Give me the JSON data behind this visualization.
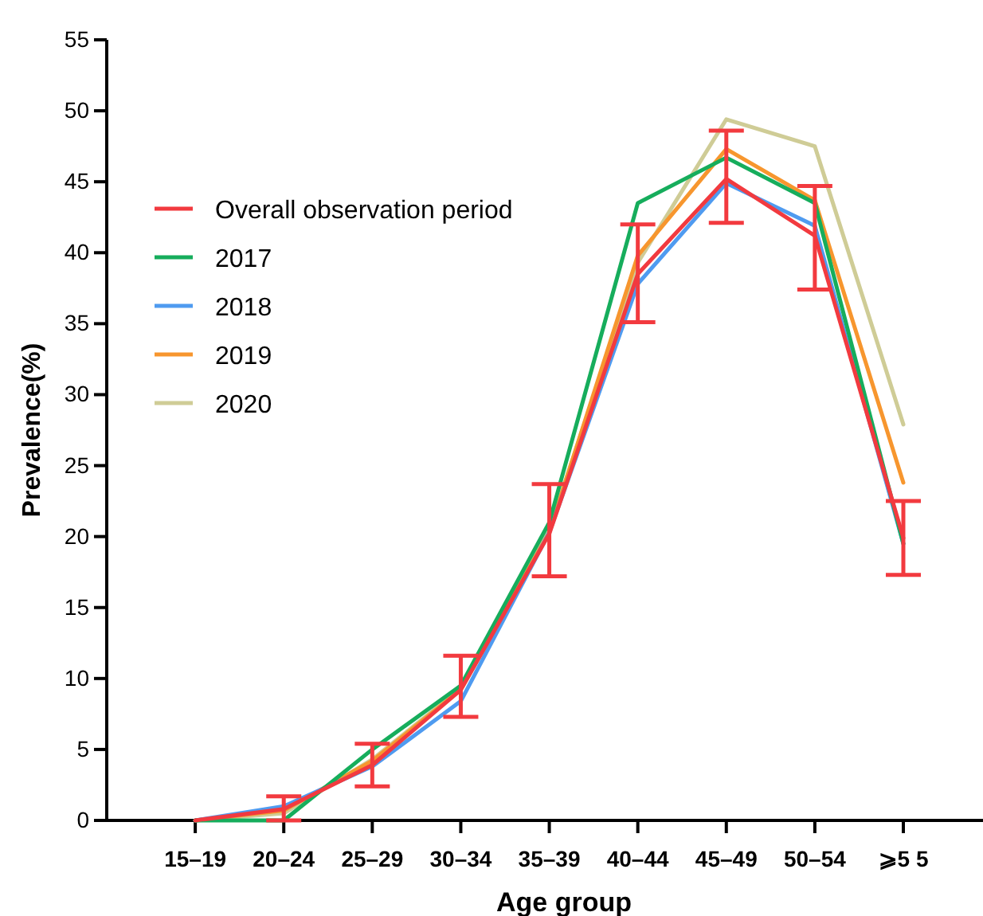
{
  "chart_data": {
    "type": "line",
    "xlabel": "Age group",
    "ylabel": "Prevalence(%)",
    "categories": [
      "15–19",
      "20–24",
      "25–29",
      "30–34",
      "35–39",
      "40–44",
      "45–49",
      "50–54",
      "⩾5 5"
    ],
    "ylim": [
      0,
      55
    ],
    "yticks": [
      0,
      5,
      10,
      15,
      20,
      25,
      30,
      35,
      40,
      45,
      50,
      55
    ],
    "grid": false,
    "legend": "top left",
    "marker": "none",
    "line_style": "solid",
    "series": [
      {
        "name": "Overall observation period",
        "color": "#f23a3f",
        "values": [
          0,
          0.8,
          3.9,
          9.2,
          20.2,
          38.5,
          45.2,
          41.2,
          19.9
        ],
        "errors": [
          null,
          [
            0,
            1.7
          ],
          [
            2.4,
            5.4
          ],
          [
            7.3,
            11.6
          ],
          [
            17.2,
            23.7
          ],
          [
            35.1,
            42.0
          ],
          [
            42.1,
            48.6
          ],
          [
            37.4,
            44.7
          ],
          [
            17.3,
            22.5
          ]
        ]
      },
      {
        "name": "2017",
        "color": "#16ad5c",
        "values": [
          0,
          0,
          5.0,
          9.5,
          21.0,
          43.5,
          46.7,
          43.5,
          19.5
        ]
      },
      {
        "name": "2018",
        "color": "#4f9bf0",
        "values": [
          0,
          1.0,
          3.8,
          8.4,
          20.3,
          37.8,
          44.9,
          41.9,
          19.5
        ]
      },
      {
        "name": "2019",
        "color": "#f7962e",
        "values": [
          0,
          0.7,
          4.2,
          9.2,
          20.3,
          39.8,
          47.3,
          43.7,
          23.8
        ]
      },
      {
        "name": "2020",
        "color": "#cfcc96",
        "values": [
          0,
          0.5,
          4.3,
          9.3,
          20.5,
          39.3,
          49.4,
          47.5,
          27.9
        ]
      }
    ]
  }
}
